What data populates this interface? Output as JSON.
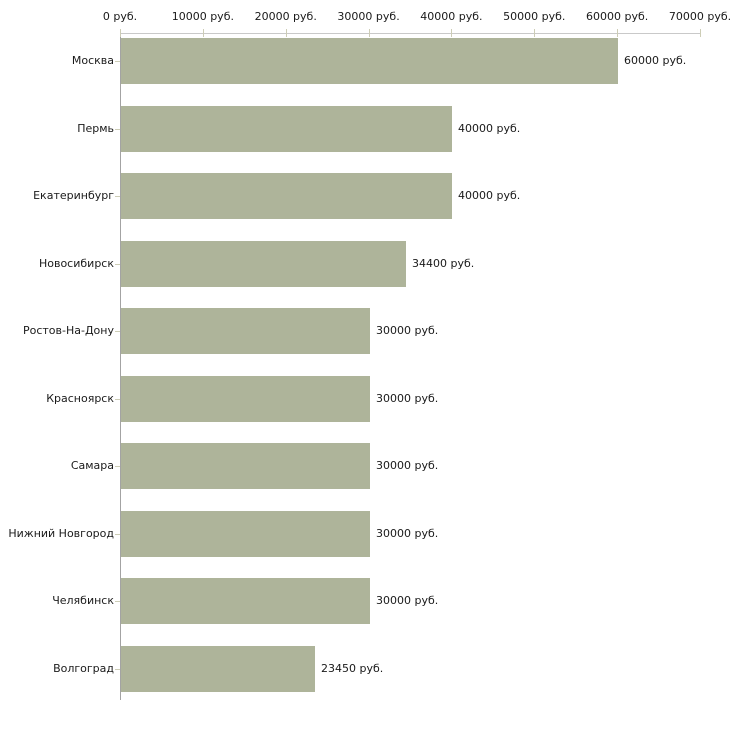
{
  "chart_data": {
    "type": "bar",
    "orientation": "horizontal",
    "title": "",
    "xlabel": "",
    "ylabel": "",
    "grid": false,
    "legend": false,
    "categories": [
      "Москва",
      "Пермь",
      "Екатеринбург",
      "Новосибирск",
      "Ростов-На-Дону",
      "Красноярск",
      "Самара",
      "Нижний Новгород",
      "Челябинск",
      "Волгоград"
    ],
    "values": [
      60000,
      40000,
      40000,
      34400,
      30000,
      30000,
      30000,
      30000,
      30000,
      23450
    ],
    "value_labels": [
      "60000 руб.",
      "40000 руб.",
      "40000 руб.",
      "34400 руб.",
      "30000 руб.",
      "30000 руб.",
      "30000 руб.",
      "30000 руб.",
      "30000 руб.",
      "23450 руб."
    ],
    "x_axis": {
      "position": "top",
      "min": 0,
      "max": 70000,
      "ticks": [
        0,
        10000,
        20000,
        30000,
        40000,
        50000,
        60000,
        70000
      ],
      "tick_labels": [
        "0 руб.",
        "10000 руб.",
        "20000 руб.",
        "30000 руб.",
        "40000 руб.",
        "50000 руб.",
        "60000 руб.",
        "70000 руб."
      ]
    },
    "colors": {
      "bar_fill": "#aeb49a",
      "axis_line_horizontal": "#c9c9c9",
      "axis_line_vertical": "#a3a3a3",
      "tick_mark": "#cdcdb6",
      "text": "#1a1a1a",
      "background": "#ffffff"
    }
  }
}
